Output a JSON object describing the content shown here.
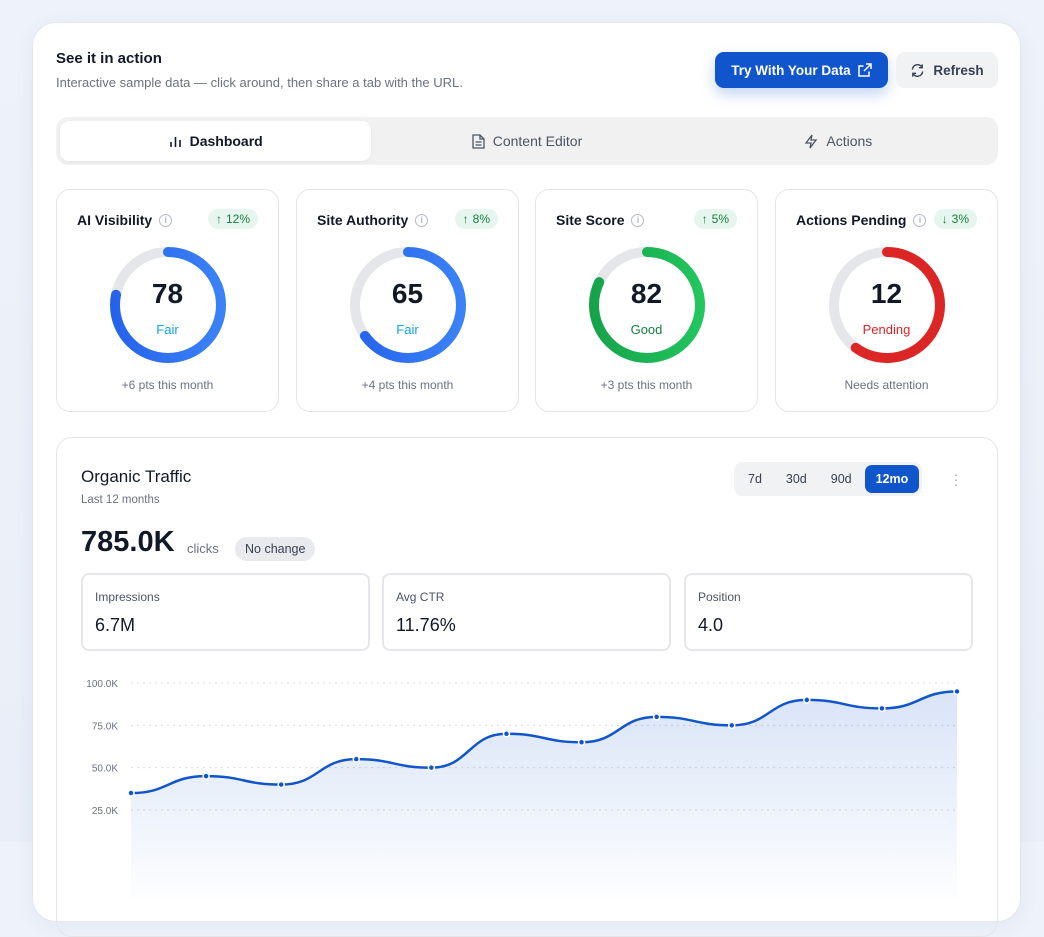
{
  "header": {
    "title": "See it in action",
    "subtitle": "Interactive sample data — click around, then share a tab with the URL.",
    "primary_button": "Try With Your Data",
    "refresh_button": "Refresh"
  },
  "tabs": [
    {
      "label": "Dashboard",
      "icon": "bar-chart-icon",
      "active": true
    },
    {
      "label": "Content Editor",
      "icon": "document-icon"
    },
    {
      "label": "Actions",
      "icon": "lightning-icon"
    }
  ],
  "cards": [
    {
      "title": "AI Visibility",
      "change": "12%",
      "direction": "up",
      "value": "78",
      "status": "Fair",
      "fill": 0.78,
      "foot": "+6 pts this month",
      "color": "#3b82f6",
      "color2": "#2563eb",
      "status_color": "#0ea5e9"
    },
    {
      "title": "Site Authority",
      "change": "8%",
      "direction": "up",
      "value": "65",
      "status": "Fair",
      "fill": 0.65,
      "foot": "+4 pts this month",
      "color": "#3b82f6",
      "color2": "#2563eb",
      "status_color": "#0ea5e9"
    },
    {
      "title": "Site Score",
      "change": "5%",
      "direction": "up",
      "value": "82",
      "status": "Good",
      "fill": 0.82,
      "foot": "+3 pts this month",
      "color": "#22c55e",
      "color2": "#16a34a",
      "status_color": "#15803d"
    },
    {
      "title": "Actions Pending",
      "change": "3%",
      "direction": "down",
      "value": "12",
      "status": "Pending",
      "fill": 0.6,
      "foot": "Needs attention",
      "color": "#dc2626",
      "color2": "#dc2626",
      "status_color": "#dc2626"
    }
  ],
  "traffic": {
    "title": "Organic Traffic",
    "subtitle": "Last 12 months",
    "ranges": [
      "7d",
      "30d",
      "90d",
      "12mo"
    ],
    "active_range": "12mo",
    "total": "785.0K",
    "unit": "clicks",
    "change": "No change",
    "stats": [
      {
        "label": "Impressions",
        "value": "6.7M"
      },
      {
        "label": "Avg CTR",
        "value": "11.76%"
      },
      {
        "label": "Position",
        "value": "4.0"
      }
    ]
  },
  "chart_data": {
    "type": "area",
    "ylim": [
      0,
      100
    ],
    "yticks": [
      "100.0K",
      "75.0K",
      "50.0K",
      "25.0K"
    ],
    "ytick_values": [
      100,
      75,
      50,
      25
    ],
    "values": [
      35,
      45,
      40,
      55,
      50,
      70,
      65,
      80,
      75,
      90,
      85,
      95
    ],
    "color": "#1155cc"
  }
}
